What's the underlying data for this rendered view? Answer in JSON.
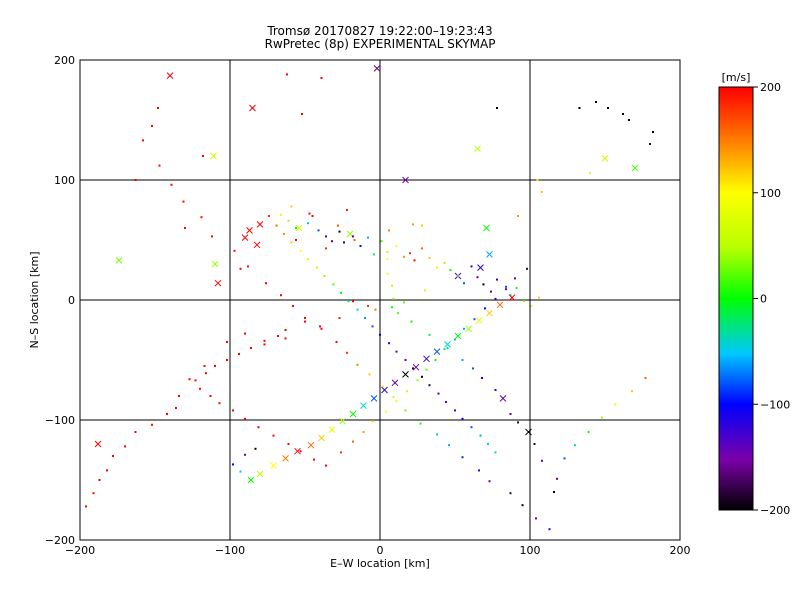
{
  "chart_data": {
    "type": "scatter",
    "title": "Tromsø 20170827 19:22:00–19:23:43",
    "subtitle": "RwPretec (8p) EXPERIMENTAL SKYMAP",
    "xlabel": "E–W location [km]",
    "ylabel": "N–S location [km]",
    "xlim": [
      -200,
      200
    ],
    "ylim": [
      -200,
      200
    ],
    "x_ticks": [
      "−200",
      "−100",
      "0",
      "100",
      "200"
    ],
    "y_ticks": [
      "200",
      "100",
      "0",
      "−100",
      "−200"
    ],
    "grid": true,
    "colorbar": {
      "label": "[m/s]",
      "range": [
        -200,
        200
      ],
      "ticks": [
        "200",
        "100",
        "0",
        "−100",
        "−200"
      ],
      "scale": "rainbow (black-purple-blue-cyan-green-yellow-orange-red)"
    },
    "points_x": [
      -140,
      -188,
      -111,
      -110,
      -62,
      -39,
      -2,
      17,
      65,
      78,
      -85,
      -52,
      -54,
      -20,
      -118,
      -130,
      -148,
      -163,
      -174,
      -108,
      -93,
      -56,
      -47,
      -36,
      -45,
      -22,
      -28,
      -17,
      6,
      22,
      28,
      5,
      5,
      8,
      9,
      12,
      21,
      33,
      45,
      55,
      62,
      68,
      77,
      82,
      87,
      92,
      99,
      103,
      108,
      118,
      116,
      133,
      144,
      152,
      162,
      166,
      182,
      180,
      170,
      150,
      140,
      105,
      108,
      92,
      71,
      73,
      67,
      52,
      30,
      16,
      8,
      -3,
      -8,
      -18,
      -27,
      -40,
      -50,
      -63,
      -77,
      -90,
      -102,
      -117,
      -127,
      -134,
      -136,
      -142,
      -152,
      -163,
      -170,
      -178,
      -182,
      -187,
      -191,
      -196,
      -152,
      -158,
      -147,
      -139,
      -131,
      -119,
      -112,
      -97,
      -88,
      -76,
      -66,
      -58,
      -50,
      -39,
      -29,
      -22,
      -15,
      -7,
      2,
      9,
      17,
      27,
      38,
      46,
      55,
      66,
      73,
      87,
      95,
      104,
      113,
      123,
      130,
      139,
      148,
      157,
      168,
      177,
      -59,
      -66,
      -61,
      -56,
      -48,
      -41,
      -36,
      -32,
      -27,
      -24,
      -18,
      -13,
      -8,
      -4,
      1,
      5,
      11,
      16,
      20,
      23,
      28,
      33,
      38,
      43,
      47,
      52,
      56,
      61,
      65,
      69,
      74,
      78,
      84,
      87,
      91,
      96,
      101,
      106,
      -63,
      -68,
      -77,
      -86,
      -94,
      -102,
      -110,
      -116,
      -123,
      -120,
      -113,
      -107,
      -98,
      -90,
      -81,
      -71,
      -61,
      -53,
      -44,
      -36,
      -26,
      -18,
      -11,
      -5,
      4,
      11,
      18,
      25,
      31,
      37,
      43,
      50,
      56,
      63,
      70,
      77,
      84,
      90,
      98,
      -83,
      -90,
      -98,
      -93,
      -86,
      -80,
      -71,
      -63,
      -55,
      -46,
      -39,
      -32,
      -25,
      -18,
      -11,
      -4,
      3,
      10,
      17,
      24,
      31,
      38,
      45,
      52,
      59,
      66,
      73,
      80,
      88,
      -82,
      -90,
      -87,
      -80,
      -74,
      -69,
      -64,
      -59,
      -53,
      -48,
      -42,
      -37,
      -31,
      -26,
      -21,
      -15,
      -10,
      -5,
      0,
      6,
      11,
      17,
      22,
      28,
      33,
      39,
      44,
      50,
      55,
      61,
      67,
      72,
      77
    ],
    "points_y": [
      187,
      -120,
      120,
      30,
      188,
      185,
      193,
      100,
      126,
      160,
      160,
      155,
      60,
      55,
      120,
      60,
      160,
      100,
      33,
      14,
      26,
      50,
      72,
      43,
      70,
      75,
      62,
      50,
      58,
      63,
      62,
      34,
      22,
      12,
      1,
      -11,
      -18,
      -29,
      -40,
      -50,
      -57,
      -65,
      -75,
      -82,
      -95,
      -102,
      -110,
      -120,
      -134,
      -149,
      -160,
      160,
      165,
      160,
      155,
      150,
      140,
      130,
      110,
      118,
      106,
      100,
      90,
      70,
      60,
      38,
      27,
      20,
      8,
      -2,
      -6,
      -8,
      -5,
      -1,
      -15,
      -22,
      -18,
      -32,
      -37,
      -28,
      -35,
      -55,
      -66,
      -80,
      -90,
      -95,
      -104,
      -110,
      -122,
      -130,
      -142,
      -150,
      -161,
      -172,
      145,
      133,
      112,
      96,
      82,
      69,
      53,
      41,
      28,
      14,
      4,
      -5,
      -15,
      -24,
      -35,
      -44,
      -54,
      -62,
      -72,
      -81,
      -92,
      -103,
      -112,
      -121,
      -131,
      -142,
      -151,
      -161,
      -171,
      -182,
      -191,
      -132,
      -121,
      -110,
      -98,
      -87,
      -76,
      -65,
      78,
      71,
      66,
      60,
      64,
      58,
      53,
      49,
      57,
      48,
      53,
      45,
      52,
      38,
      49,
      40,
      45,
      36,
      39,
      33,
      43,
      35,
      27,
      31,
      25,
      20,
      14,
      28,
      19,
      13,
      7,
      17,
      11,
      4,
      10,
      -1,
      -5,
      2,
      -25,
      -30,
      -34,
      -40,
      -45,
      -50,
      -55,
      -61,
      -67,
      -74,
      -80,
      -86,
      -92,
      -99,
      -106,
      -113,
      -120,
      -126,
      -133,
      -138,
      -127,
      -118,
      -110,
      -101,
      -93,
      -84,
      -76,
      -67,
      -58,
      -50,
      -41,
      -33,
      -24,
      -16,
      -7,
      1,
      9,
      18,
      26,
      -124,
      -129,
      -137,
      -143,
      -150,
      -145,
      -138,
      -132,
      -126,
      -121,
      -115,
      -108,
      -101,
      -95,
      -88,
      -82,
      -75,
      -69,
      -62,
      -56,
      -49,
      -43,
      -37,
      -30,
      -24,
      -17,
      -11,
      -4,
      2,
      46,
      52,
      58,
      63,
      70,
      62,
      55,
      48,
      41,
      34,
      27,
      20,
      13,
      6,
      -1,
      -8,
      -15,
      -22,
      -29,
      -36,
      -43,
      -50,
      -57,
      -64,
      -71,
      -78,
      -85,
      -92,
      -99,
      -106,
      -113,
      -120,
      -127
    ],
    "points_v": [
      200,
      200,
      60,
      40,
      200,
      200,
      -160,
      -150,
      50,
      -200,
      200,
      200,
      60,
      40,
      200,
      200,
      200,
      200,
      30,
      200,
      200,
      200,
      200,
      180,
      200,
      190,
      170,
      160,
      150,
      140,
      120,
      100,
      80,
      60,
      40,
      20,
      0,
      -20,
      -40,
      -60,
      -80,
      -100,
      -120,
      -140,
      -160,
      -180,
      -200,
      -180,
      -160,
      -140,
      -200,
      -200,
      -200,
      -200,
      -200,
      -200,
      -200,
      -180,
      20,
      60,
      80,
      100,
      120,
      140,
      0,
      -60,
      -120,
      -160,
      60,
      30,
      0,
      150,
      180,
      200,
      190,
      200,
      200,
      200,
      200,
      200,
      200,
      200,
      200,
      200,
      200,
      200,
      200,
      200,
      200,
      200,
      200,
      200,
      200,
      200,
      200,
      200,
      200,
      200,
      200,
      200,
      200,
      200,
      200,
      200,
      200,
      200,
      200,
      200,
      200,
      180,
      150,
      120,
      90,
      60,
      30,
      0,
      -30,
      -60,
      -90,
      -120,
      -150,
      -180,
      -200,
      -160,
      -120,
      -80,
      -40,
      0,
      40,
      80,
      120,
      160,
      120,
      80,
      40,
      0,
      -40,
      -80,
      -120,
      -160,
      -200,
      -180,
      -140,
      -100,
      -60,
      -20,
      20,
      60,
      100,
      140,
      180,
      200,
      160,
      120,
      80,
      40,
      0,
      -40,
      -80,
      -120,
      -160,
      -200,
      -160,
      -120,
      -80,
      -40,
      0,
      40,
      80,
      120,
      200,
      200,
      200,
      200,
      200,
      200,
      200,
      200,
      200,
      200,
      200,
      200,
      200,
      200,
      200,
      200,
      200,
      200,
      200,
      200,
      180,
      160,
      140,
      120,
      100,
      80,
      60,
      40,
      20,
      0,
      -20,
      -40,
      -60,
      -80,
      -100,
      -120,
      -140,
      -160,
      -180,
      -200,
      -150,
      -100,
      -50,
      0,
      50,
      100,
      150,
      200,
      160,
      120,
      80,
      40,
      0,
      -40,
      -80,
      -120,
      -160,
      -200,
      -160,
      -120,
      -80,
      -40,
      0,
      40,
      80,
      120,
      160,
      200,
      200,
      200,
      200,
      200,
      180,
      160,
      140,
      120,
      100,
      80,
      60,
      40,
      20,
      0,
      -20,
      -40,
      -60,
      -80,
      -100,
      -120,
      -140,
      -160,
      -180,
      -200,
      -180,
      -160,
      -140,
      -120,
      -100,
      -80,
      -60,
      -40,
      -20
    ],
    "points_marker": [
      "x",
      "x",
      "x",
      "x",
      ".",
      ".",
      "x",
      "x",
      "x",
      ".",
      "x",
      ".",
      "x",
      "x",
      ".",
      ".",
      ".",
      ".",
      "x",
      "x",
      ".",
      ".",
      ".",
      ".",
      ".",
      ".",
      ".",
      ".",
      ".",
      ".",
      ".",
      ".",
      ".",
      ".",
      ".",
      ".",
      ".",
      ".",
      ".",
      ".",
      ".",
      ".",
      ".",
      "x",
      ".",
      ".",
      "x",
      ".",
      ".",
      ".",
      ".",
      ".",
      ".",
      ".",
      ".",
      ".",
      ".",
      ".",
      "x",
      "x",
      ".",
      ".",
      ".",
      ".",
      "x",
      "x",
      "x",
      "x",
      ".",
      ".",
      ".",
      ".",
      ".",
      ".",
      ".",
      ".",
      ".",
      ".",
      ".",
      ".",
      ".",
      ".",
      ".",
      ".",
      ".",
      ".",
      ".",
      ".",
      ".",
      ".",
      ".",
      ".",
      ".",
      ".",
      ".",
      ".",
      ".",
      ".",
      ".",
      ".",
      ".",
      ".",
      ".",
      ".",
      ".",
      ".",
      ".",
      ".",
      ".",
      ".",
      ".",
      ".",
      ".",
      ".",
      ".",
      ".",
      ".",
      ".",
      ".",
      ".",
      ".",
      ".",
      ".",
      ".",
      ".",
      ".",
      ".",
      ".",
      ".",
      ".",
      ".",
      ".",
      ".",
      ".",
      ".",
      ".",
      ".",
      ".",
      ".",
      ".",
      ".",
      ".",
      ".",
      ".",
      ".",
      ".",
      ".",
      ".",
      ".",
      ".",
      ".",
      ".",
      ".",
      ".",
      ".",
      ".",
      ".",
      ".",
      ".",
      ".",
      ".",
      ".",
      ".",
      ".",
      ".",
      ".",
      ".",
      ".",
      ".",
      ".",
      ".",
      ".",
      ".",
      ".",
      ".",
      ".",
      ".",
      ".",
      ".",
      ".",
      ".",
      ".",
      ".",
      ".",
      ".",
      ".",
      ".",
      ".",
      ".",
      ".",
      ".",
      ".",
      ".",
      ".",
      ".",
      ".",
      ".",
      ".",
      ".",
      ".",
      ".",
      ".",
      ".",
      ".",
      ".",
      ".",
      ".",
      ".",
      ".",
      ".",
      ".",
      ".",
      ".",
      "x",
      "x",
      "x",
      "x",
      "x",
      "x",
      "x",
      "x",
      "x",
      "x",
      "x",
      "x",
      "x",
      "x",
      "x",
      "x",
      "x",
      "x",
      "x",
      "x",
      "x",
      "x",
      "x",
      "x",
      "x",
      "x",
      "x",
      "x",
      "x",
      ".",
      ".",
      ".",
      ".",
      ".",
      ".",
      ".",
      ".",
      ".",
      ".",
      ".",
      ".",
      ".",
      ".",
      ".",
      ".",
      ".",
      ".",
      ".",
      ".",
      ".",
      ".",
      ".",
      ".",
      ".",
      ".",
      ".",
      ".",
      ".",
      ".",
      ".",
      ".",
      "."
    ]
  }
}
